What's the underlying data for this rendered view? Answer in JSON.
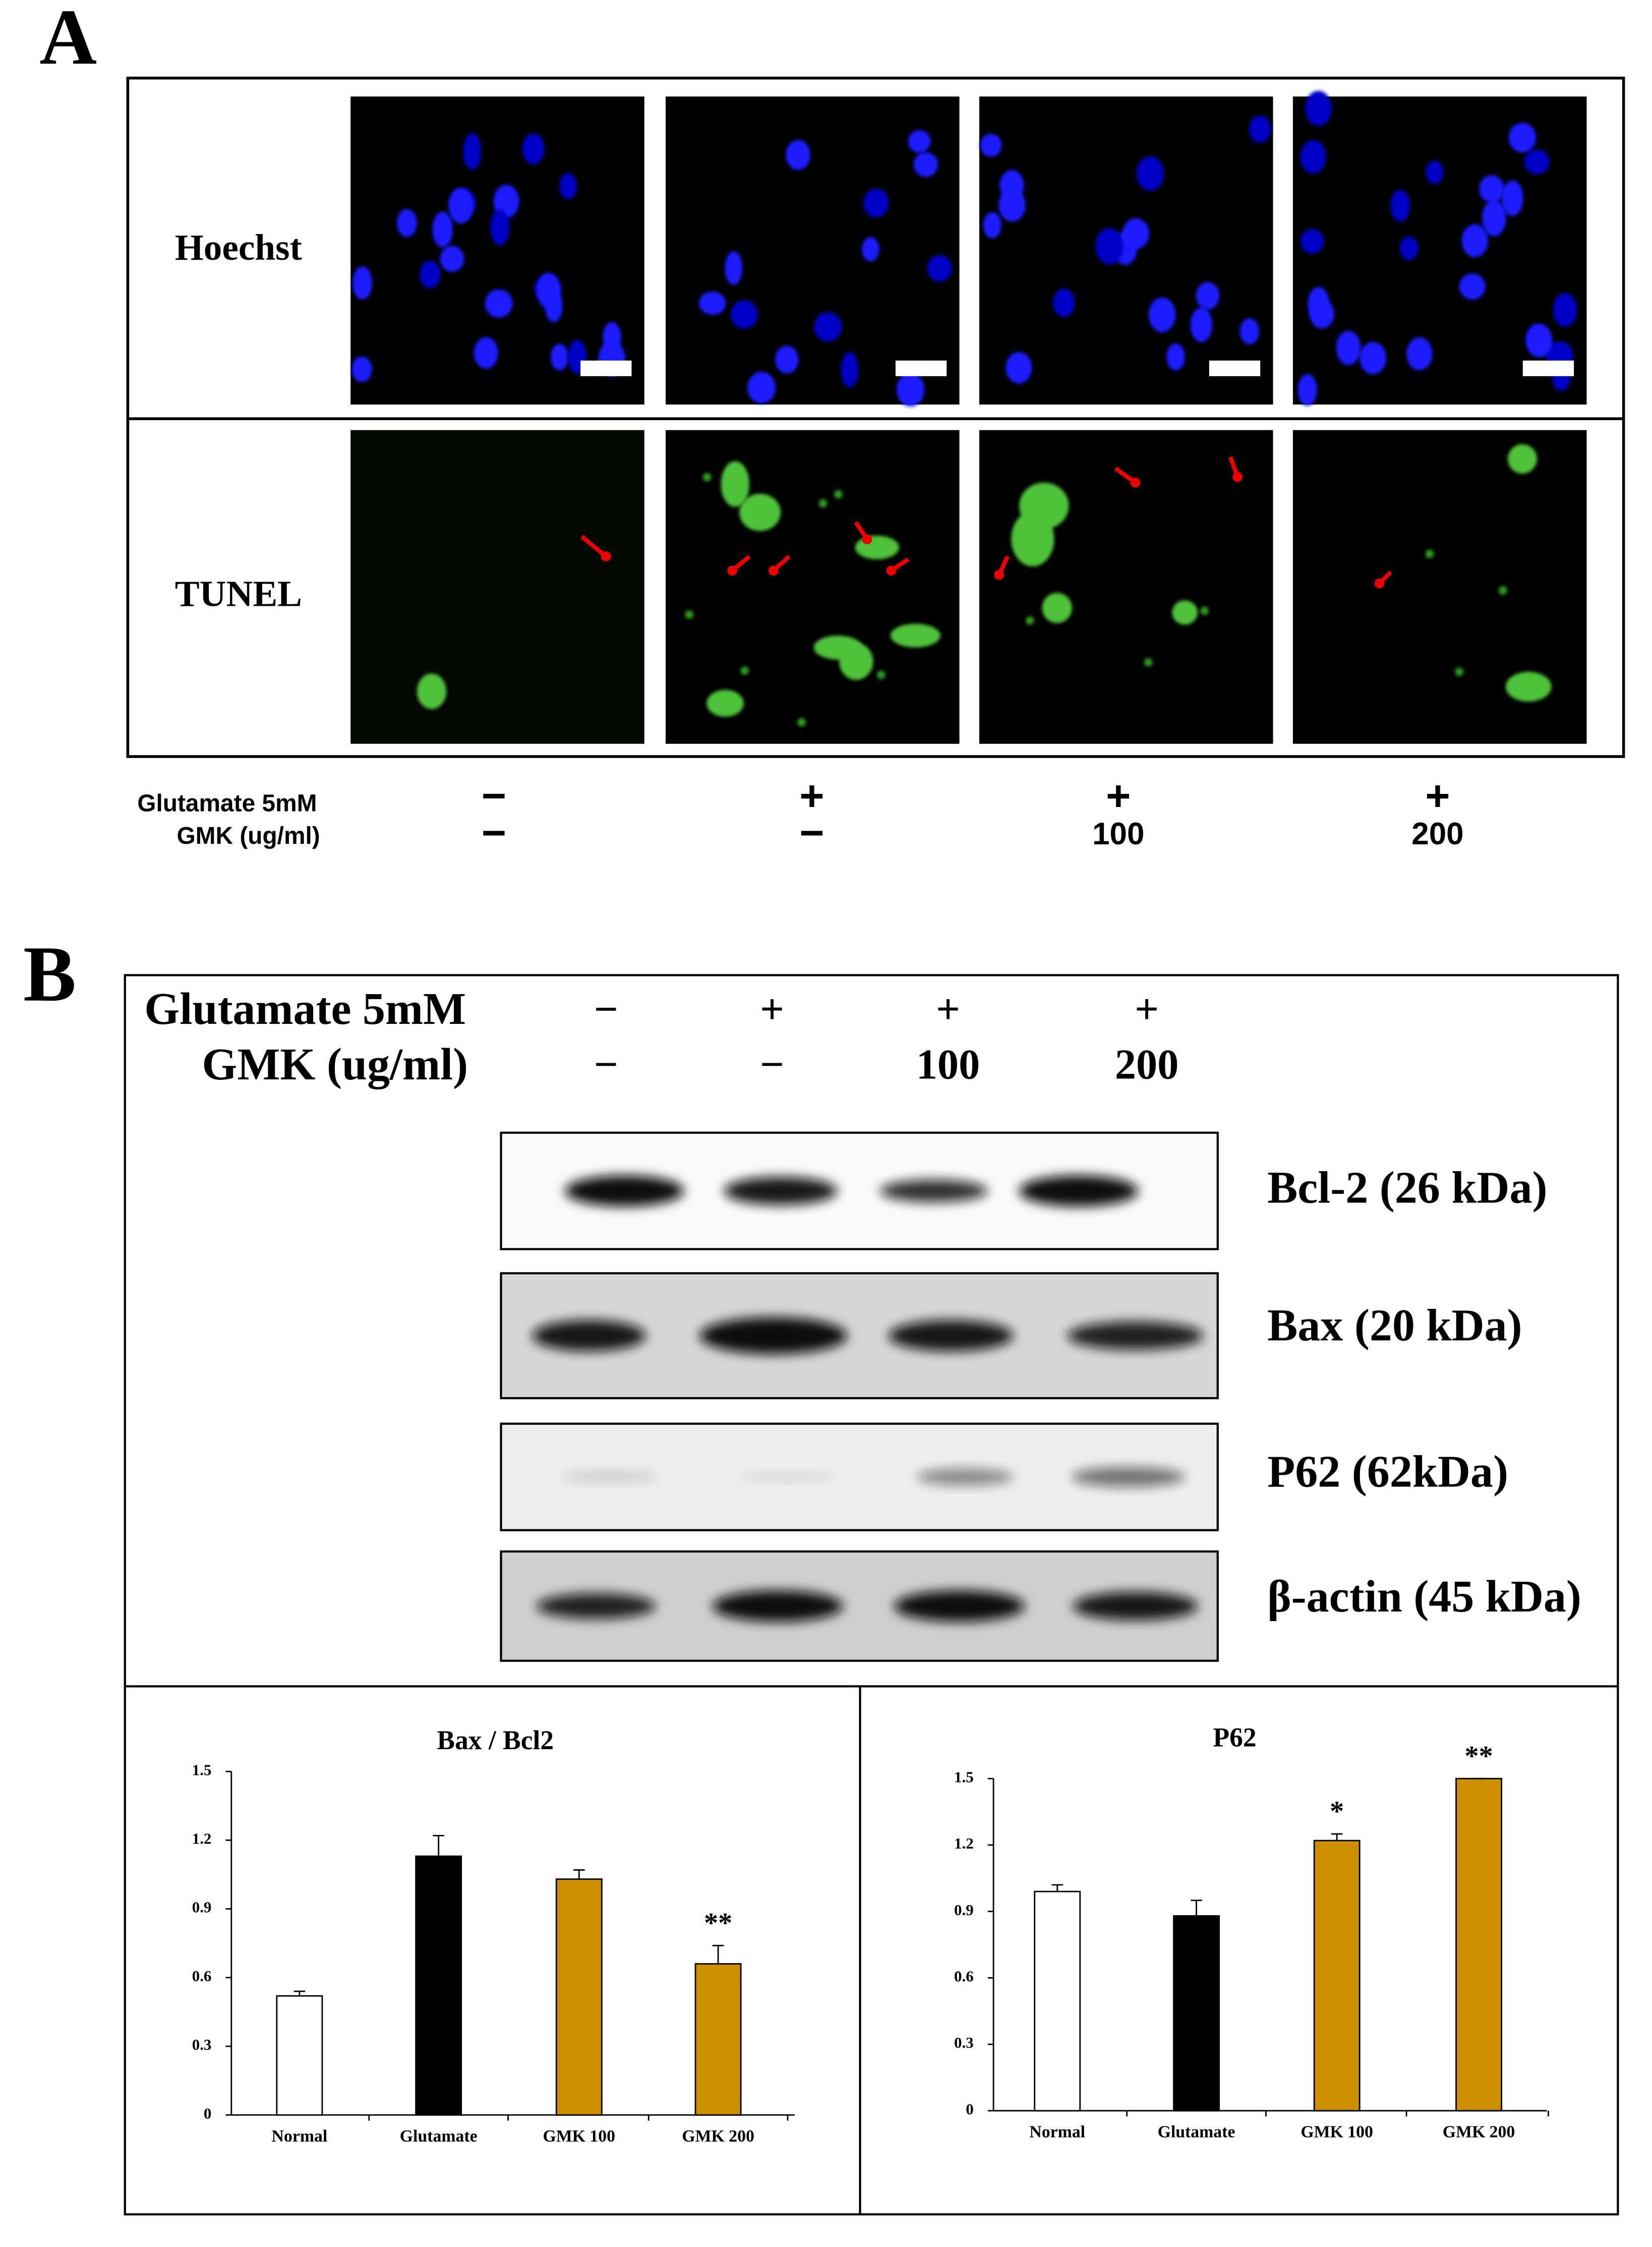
{
  "panel_a": {
    "label": "A",
    "rows": [
      "Hoechst",
      "TUNEL"
    ],
    "treatment_labels": [
      "Glutamate 5mM",
      "GMK (ug/ml)"
    ],
    "glutamate": [
      "−",
      "+",
      "+",
      "+"
    ],
    "gmk": [
      "−",
      "−",
      "100",
      "200"
    ]
  },
  "panel_b": {
    "label": "B",
    "treatment_labels": [
      "Glutamate 5mM",
      "GMK (ug/ml)"
    ],
    "glutamate": [
      "−",
      "+",
      "+",
      "+"
    ],
    "gmk": [
      "−",
      "−",
      "100",
      "200"
    ],
    "blots": [
      "Bcl-2 (26 kDa)",
      "Bax (20 kDa)",
      "P62 (62kDa)",
      "β-actin (45 kDa)"
    ]
  },
  "chart_data": [
    {
      "type": "bar",
      "title": "Bax / Bcl2",
      "categories": [
        "Normal",
        "Glutamate",
        "GMK 100",
        "GMK 200"
      ],
      "values": [
        0.52,
        1.13,
        1.03,
        0.66
      ],
      "errors": [
        0.02,
        0.09,
        0.04,
        0.08
      ],
      "colors": [
        "#ffffff",
        "#000000",
        "#cc8f00",
        "#cc8f00"
      ],
      "ylim": [
        0,
        1.5
      ],
      "yticks": [
        0,
        0.3,
        0.6,
        0.9,
        1.2,
        1.5
      ],
      "annotations": [
        {
          "index": 3,
          "text": "**"
        }
      ]
    },
    {
      "type": "bar",
      "title": "P62",
      "categories": [
        "Normal",
        "Glutamate",
        "GMK 100",
        "GMK 200"
      ],
      "values": [
        0.99,
        0.88,
        1.22,
        1.5
      ],
      "errors": [
        0.03,
        0.07,
        0.03,
        0
      ],
      "colors": [
        "#ffffff",
        "#000000",
        "#cc8f00",
        "#cc8f00"
      ],
      "ylim": [
        0,
        1.5
      ],
      "yticks": [
        0,
        0.3,
        0.6,
        0.9,
        1.2,
        1.5
      ],
      "annotations": [
        {
          "index": 2,
          "text": "*"
        },
        {
          "index": 3,
          "text": "**"
        }
      ]
    }
  ]
}
